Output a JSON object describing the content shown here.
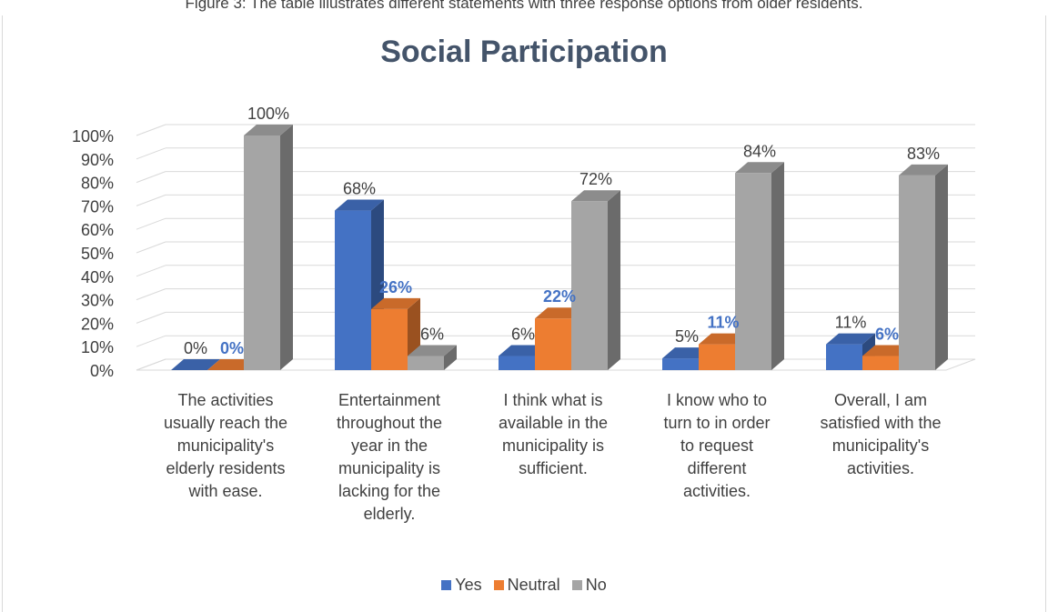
{
  "caption": "Figure 3: The table illustrates different statements with three response options from older residents.",
  "colors": {
    "yes": "#4472c4",
    "neutral": "#ed7d31",
    "no": "#a5a5a5"
  },
  "chart_data": {
    "type": "bar",
    "title": "Social Participation",
    "categories": [
      "The activities usually reach the municipality's elderly residents with ease.",
      "Entertainment throughout the year in the municipality is lacking for the elderly.",
      "I think what is available in the municipality is sufficient.",
      "I know who to turn to in order to request different activities.",
      "Overall, I am satisfied with the municipality's activities."
    ],
    "category_lines": [
      [
        "The activities",
        "usually reach the",
        "municipality's",
        "elderly residents",
        "with ease."
      ],
      [
        "Entertainment",
        "throughout the",
        "year in the",
        "municipality is",
        "lacking for the",
        "elderly."
      ],
      [
        "I think what is",
        "available in the",
        "municipality is",
        "sufficient."
      ],
      [
        "I know who to",
        "turn to in order",
        "to request",
        "different",
        "activities."
      ],
      [
        "Overall, I am",
        "satisfied with the",
        "municipality's",
        "activities."
      ]
    ],
    "series": [
      {
        "name": "Yes",
        "values": [
          0,
          68,
          6,
          5,
          11
        ],
        "labels": [
          "0%",
          "68%",
          "6%",
          "5%",
          "11%"
        ]
      },
      {
        "name": "Neutral",
        "values": [
          0,
          26,
          22,
          11,
          6
        ],
        "labels": [
          "0%",
          "26%",
          "22%",
          "11%",
          "6%"
        ]
      },
      {
        "name": "No",
        "values": [
          100,
          6,
          72,
          84,
          83
        ],
        "labels": [
          "100%",
          "6%",
          "72%",
          "84%",
          "83%"
        ]
      }
    ],
    "yticks": [
      "0%",
      "10%",
      "20%",
      "30%",
      "40%",
      "50%",
      "60%",
      "70%",
      "80%",
      "90%",
      "100%"
    ],
    "ylim": [
      0,
      100
    ],
    "legend_position": "bottom",
    "grid": true,
    "style": "3d-clustered-column"
  }
}
